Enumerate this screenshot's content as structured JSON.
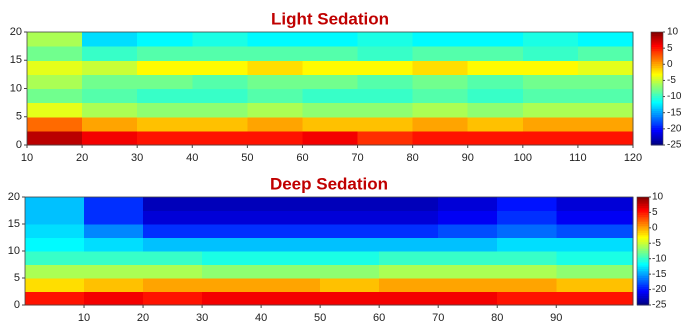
{
  "chart_data": [
    {
      "type": "heatmap",
      "title": "Light Sedation",
      "title_color": "#c00000",
      "colormap": "jet",
      "xbins": [
        10,
        20,
        30,
        40,
        50,
        60,
        70,
        80,
        90,
        100,
        110,
        120
      ],
      "ybins": [
        0,
        2.5,
        5,
        7.5,
        10,
        12.5,
        15,
        17.5,
        20
      ],
      "values": [
        [
          8,
          6,
          5,
          5,
          5,
          6,
          4,
          5,
          5,
          5,
          5
        ],
        [
          2,
          0,
          -1,
          -1,
          0,
          -1,
          -1,
          0,
          -1,
          0,
          0
        ],
        [
          -4,
          -6,
          -7,
          -7,
          -6,
          -7,
          -7,
          -6,
          -7,
          -6,
          -6
        ],
        [
          -8,
          -9,
          -10,
          -10,
          -9,
          -10,
          -10,
          -9,
          -10,
          -9,
          -9
        ],
        [
          -6,
          -8,
          -8,
          -9,
          -8,
          -8,
          -9,
          -8,
          -9,
          -8,
          -8
        ],
        [
          -4,
          -5,
          -3,
          -3,
          -2,
          -3,
          -3,
          -2,
          -3,
          -3,
          -4
        ],
        [
          -8,
          -10,
          -9,
          -9,
          -9,
          -9,
          -10,
          -9,
          -9,
          -10,
          -9
        ],
        [
          -6,
          -13,
          -12,
          -11,
          -12,
          -12,
          -11,
          -12,
          -12,
          -11,
          -12
        ]
      ],
      "xlim": [
        10,
        120
      ],
      "xticks": [
        10,
        20,
        30,
        40,
        50,
        60,
        70,
        80,
        90,
        100,
        110,
        120
      ],
      "ylim": [
        0,
        20
      ],
      "yticks": [
        0,
        5,
        10,
        15,
        20
      ],
      "clim": [
        -25,
        10
      ],
      "cticks": [
        10,
        5,
        0,
        -5,
        -10,
        -15,
        -20,
        -25
      ]
    },
    {
      "type": "heatmap",
      "title": "Deep Sedation",
      "title_color": "#c00000",
      "colormap": "jet",
      "xbins": [
        0,
        10,
        20,
        30,
        40,
        50,
        60,
        70,
        80,
        90,
        103
      ],
      "ybins": [
        0,
        2.5,
        5,
        7.5,
        10,
        12.5,
        15,
        17.5,
        20
      ],
      "values": [
        [
          5,
          6,
          5,
          6,
          6,
          6,
          6,
          6,
          5,
          5
        ],
        [
          -2,
          -1,
          0,
          0,
          0,
          -1,
          0,
          0,
          0,
          -1
        ],
        [
          -6,
          -6,
          -6,
          -7,
          -7,
          -7,
          -6,
          -6,
          -6,
          -7
        ],
        [
          -10,
          -10,
          -10,
          -11,
          -11,
          -11,
          -10,
          -10,
          -10,
          -11
        ],
        [
          -12,
          -13,
          -14,
          -14,
          -14,
          -14,
          -14,
          -14,
          -13,
          -13
        ],
        [
          -13,
          -16,
          -19,
          -19,
          -19,
          -19,
          -19,
          -18,
          -17,
          -18
        ],
        [
          -14,
          -19,
          -22,
          -22,
          -22,
          -22,
          -22,
          -21,
          -19,
          -21
        ],
        [
          -14,
          -19,
          -23,
          -23,
          -23,
          -23,
          -23,
          -22,
          -20,
          -22
        ]
      ],
      "xlim": [
        0,
        103
      ],
      "xticks": [
        10,
        20,
        30,
        40,
        50,
        60,
        70,
        80,
        90
      ],
      "ylim": [
        0,
        20
      ],
      "yticks": [
        0,
        5,
        10,
        15,
        20
      ],
      "clim": [
        -25,
        10
      ],
      "cticks": [
        10,
        5,
        0,
        -5,
        -10,
        -15,
        -20,
        -25
      ]
    }
  ]
}
